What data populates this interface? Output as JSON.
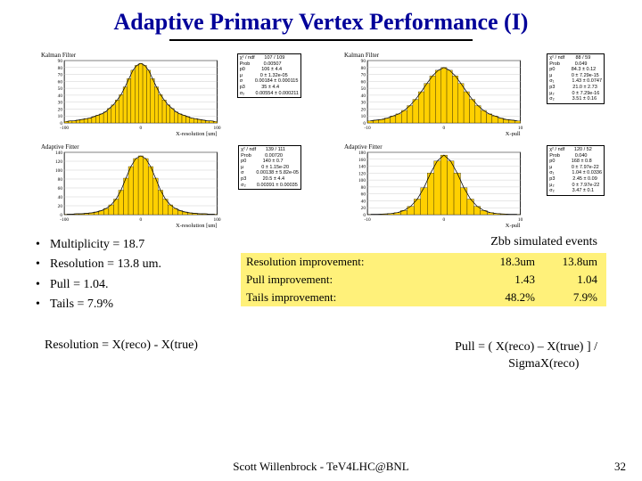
{
  "title": "Adaptive Primary Vertex Performance (I)",
  "chart_style": {
    "bar_fill": "#ffd000",
    "bar_stroke": "#000000",
    "axis_color": "#000000",
    "grid_color": "#d0d0d0",
    "background": "#ffffff"
  },
  "charts": [
    {
      "label": "Kalman Filter",
      "xlabel": "X-resolution [um]",
      "xlim": [
        -100,
        100
      ],
      "ylim": [
        0,
        90
      ],
      "ytick_step": 10,
      "bins": [
        2,
        3,
        3,
        4,
        5,
        6,
        7,
        9,
        11,
        13,
        16,
        21,
        26,
        33,
        41,
        52,
        64,
        76,
        83,
        86,
        83,
        76,
        64,
        52,
        41,
        33,
        26,
        21,
        16,
        13,
        11,
        9,
        7,
        6,
        5,
        4,
        3,
        3,
        2
      ],
      "stats": "χ² / ndf       107 / 109\nProb          0.00507\np0            106 ± 4.4\nμ             0 ± 1.32e-05\nσ         0.00184 ± 0.000115\np3            35 ± 4.4\nσ₂        0.00554 ± 0.000211"
    },
    {
      "label": "Kalman Filter",
      "xlabel": "X-pull",
      "xlim": [
        -10,
        10
      ],
      "ylim": [
        0,
        90
      ],
      "ytick_step": 10,
      "bins": [
        3,
        4,
        5,
        7,
        10,
        13,
        18,
        25,
        34,
        45,
        57,
        68,
        76,
        80,
        76,
        68,
        57,
        45,
        34,
        25,
        18,
        13,
        10,
        7,
        5,
        4,
        3
      ],
      "stats": "χ² / ndf        88 / 59\nProb           0.049\np0            84.3 ± 0.12\nμ              0 ± 7.29e-15\nσ₁             1.43 ± 0.0747\np3             21.0 ± 2.73\nμ₂             0 ± 7.29e-16\nσ₂             3.51 ± 0.16"
    },
    {
      "label": "Adaptive Fitter",
      "xlabel": "X-resolution [um]",
      "xlim": [
        -100,
        100
      ],
      "ylim": [
        0,
        140
      ],
      "ytick_step": 20,
      "bins": [
        1,
        1,
        2,
        2,
        3,
        4,
        6,
        9,
        14,
        22,
        35,
        55,
        82,
        108,
        126,
        132,
        126,
        108,
        82,
        55,
        35,
        22,
        14,
        9,
        6,
        4,
        3,
        2,
        2,
        1,
        1
      ],
      "stats": "χ² / ndf       139 / 111\nProb          0.00720\np0            140 ± 0.7\nμ             0 ± 1.15e-20\nσ         0.00138 ± 5.82e-05\np3            20.5 ± 4.4\nσ₂        0.00391 ± 0.00035"
    },
    {
      "label": "Adaptive Fitter",
      "xlabel": "X-pull",
      "xlim": [
        -10,
        10
      ],
      "ylim": [
        0,
        180
      ],
      "ytick_step": 20,
      "bins": [
        1,
        1,
        2,
        3,
        6,
        12,
        24,
        45,
        78,
        120,
        155,
        172,
        155,
        120,
        78,
        45,
        24,
        12,
        6,
        3,
        2,
        1,
        1
      ],
      "stats": "χ² / ndf       120 / 52\nProb           0.040\np0            168 ± 0.8\nμ              0 ± 7.97e-22\nσ₁             1.04 ± 0.0336\np3             2.45 ± 0.09\nμ₂             0 ± 7.97e-22\nσ₂             3.47 ± 0.1"
    }
  ],
  "bullets": [
    "Multiplicity = 18.7",
    "Resolution = 13.8 um.",
    "Pull = 1.04.",
    "Tails = 7.9%"
  ],
  "zbb_label": "Zbb simulated events",
  "improvement_table": {
    "rows": [
      [
        "Resolution improvement:",
        "18.3um",
        "13.8um"
      ],
      [
        "Pull improvement:",
        "1.43",
        "1.04"
      ],
      [
        "Tails improvement:",
        "48.2%",
        "7.9%"
      ]
    ]
  },
  "formula_left": "Resolution = X(reco) - X(true)",
  "formula_right_1": "Pull = ( X(reco) – X(true) ] /",
  "formula_right_2": "SigmaX(reco)",
  "footer": "Scott Willenbrock - TeV4LHC@BNL",
  "page_num": "32"
}
